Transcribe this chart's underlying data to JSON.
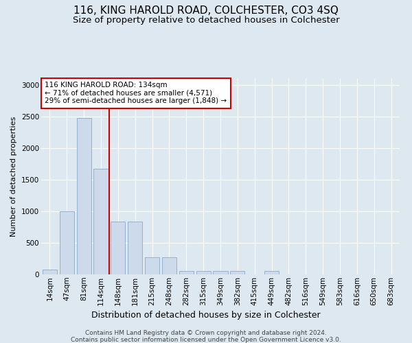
{
  "title": "116, KING HAROLD ROAD, COLCHESTER, CO3 4SQ",
  "subtitle": "Size of property relative to detached houses in Colchester",
  "xlabel": "Distribution of detached houses by size in Colchester",
  "ylabel": "Number of detached properties",
  "categories": [
    "14sqm",
    "47sqm",
    "81sqm",
    "114sqm",
    "148sqm",
    "181sqm",
    "215sqm",
    "248sqm",
    "282sqm",
    "315sqm",
    "349sqm",
    "382sqm",
    "415sqm",
    "449sqm",
    "482sqm",
    "516sqm",
    "549sqm",
    "583sqm",
    "616sqm",
    "650sqm",
    "683sqm"
  ],
  "values": [
    80,
    1000,
    2480,
    1680,
    840,
    840,
    270,
    270,
    55,
    55,
    55,
    55,
    0,
    50,
    0,
    0,
    0,
    0,
    0,
    0,
    0
  ],
  "bar_color": "#ccdaeb",
  "bar_edge_color": "#8aabc8",
  "highlight_line_index": 3,
  "highlight_color": "#cc0000",
  "annotation_text": "116 KING HAROLD ROAD: 134sqm\n← 71% of detached houses are smaller (4,571)\n29% of semi-detached houses are larger (1,848) →",
  "annotation_box_facecolor": "#ffffff",
  "annotation_box_edgecolor": "#cc0000",
  "ylim": [
    0,
    3100
  ],
  "yticks": [
    0,
    500,
    1000,
    1500,
    2000,
    2500,
    3000
  ],
  "bg_color": "#dde8f0",
  "grid_color": "#ffffff",
  "title_fontsize": 11,
  "subtitle_fontsize": 9.5,
  "xlabel_fontsize": 9,
  "ylabel_fontsize": 8,
  "tick_fontsize": 7.5,
  "footer_fontsize": 6.5,
  "footer_line1": "Contains HM Land Registry data © Crown copyright and database right 2024.",
  "footer_line2": "Contains public sector information licensed under the Open Government Licence v3.0."
}
